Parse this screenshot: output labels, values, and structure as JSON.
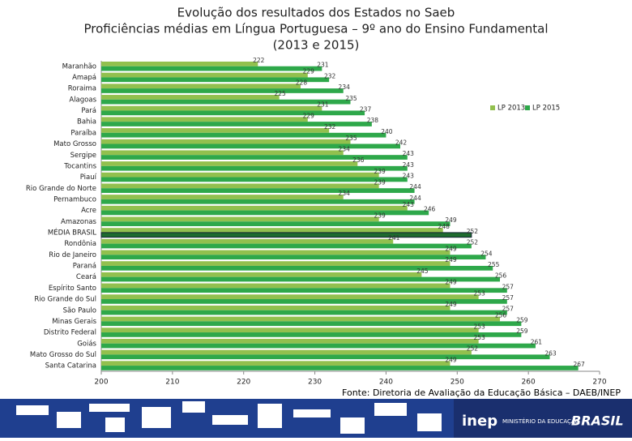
{
  "chart_data": {
    "type": "hbar",
    "title": "Evolução dos resultados dos Estados no Saeb",
    "subtitle": "Proficiências médias em Língua Portuguesa – 9º ano do Ensino Fundamental",
    "period": "(2013 e 2015)",
    "categories": [
      "Maranhão",
      "Amapá",
      "Roraima",
      "Alagoas",
      "Pará",
      "Bahia",
      "Paraíba",
      "Mato Grosso",
      "Sergipe",
      "Tocantins",
      "Piauí",
      "Rio Grande do Norte",
      "Pernambuco",
      "Acre",
      "Amazonas",
      "MÉDIA BRASIL",
      "Rondônia",
      "Rio de Janeiro",
      "Paraná",
      "Ceará",
      "Espírito Santo",
      "Rio Grande do Sul",
      "São Paulo",
      "Minas Gerais",
      "Distrito Federal",
      "Goiás",
      "Mato Grosso do Sul",
      "Santa Catarina"
    ],
    "series": [
      {
        "name": "LP 2013",
        "color": "#92c04e",
        "values": [
          222,
          229,
          228,
          225,
          231,
          229,
          232,
          235,
          234,
          236,
          239,
          239,
          234,
          243,
          239,
          248,
          241,
          249,
          249,
          245,
          249,
          253,
          249,
          256,
          253,
          253,
          252,
          249
        ]
      },
      {
        "name": "LP 2015",
        "color": "#2ea84a",
        "values": [
          231,
          232,
          234,
          235,
          237,
          238,
          240,
          242,
          243,
          243,
          243,
          244,
          244,
          246,
          249,
          252,
          252,
          254,
          255,
          256,
          257,
          257,
          257,
          259,
          259,
          261,
          263,
          267
        ]
      }
    ],
    "highlight_index": 15,
    "highlight_color": "#1e6b2e",
    "xlim": [
      200,
      270
    ],
    "xticks": [
      200,
      210,
      220,
      230,
      240,
      250,
      260,
      270
    ],
    "legend": "top-right",
    "source": "Fonte: Diretoria de Avaliação da Educação Básica – DAEB/INEP"
  },
  "footer": {
    "logo1": "inep",
    "logo2": "MINISTÉRIO DA EDUCAÇÃO",
    "logo3": "BRASIL"
  }
}
